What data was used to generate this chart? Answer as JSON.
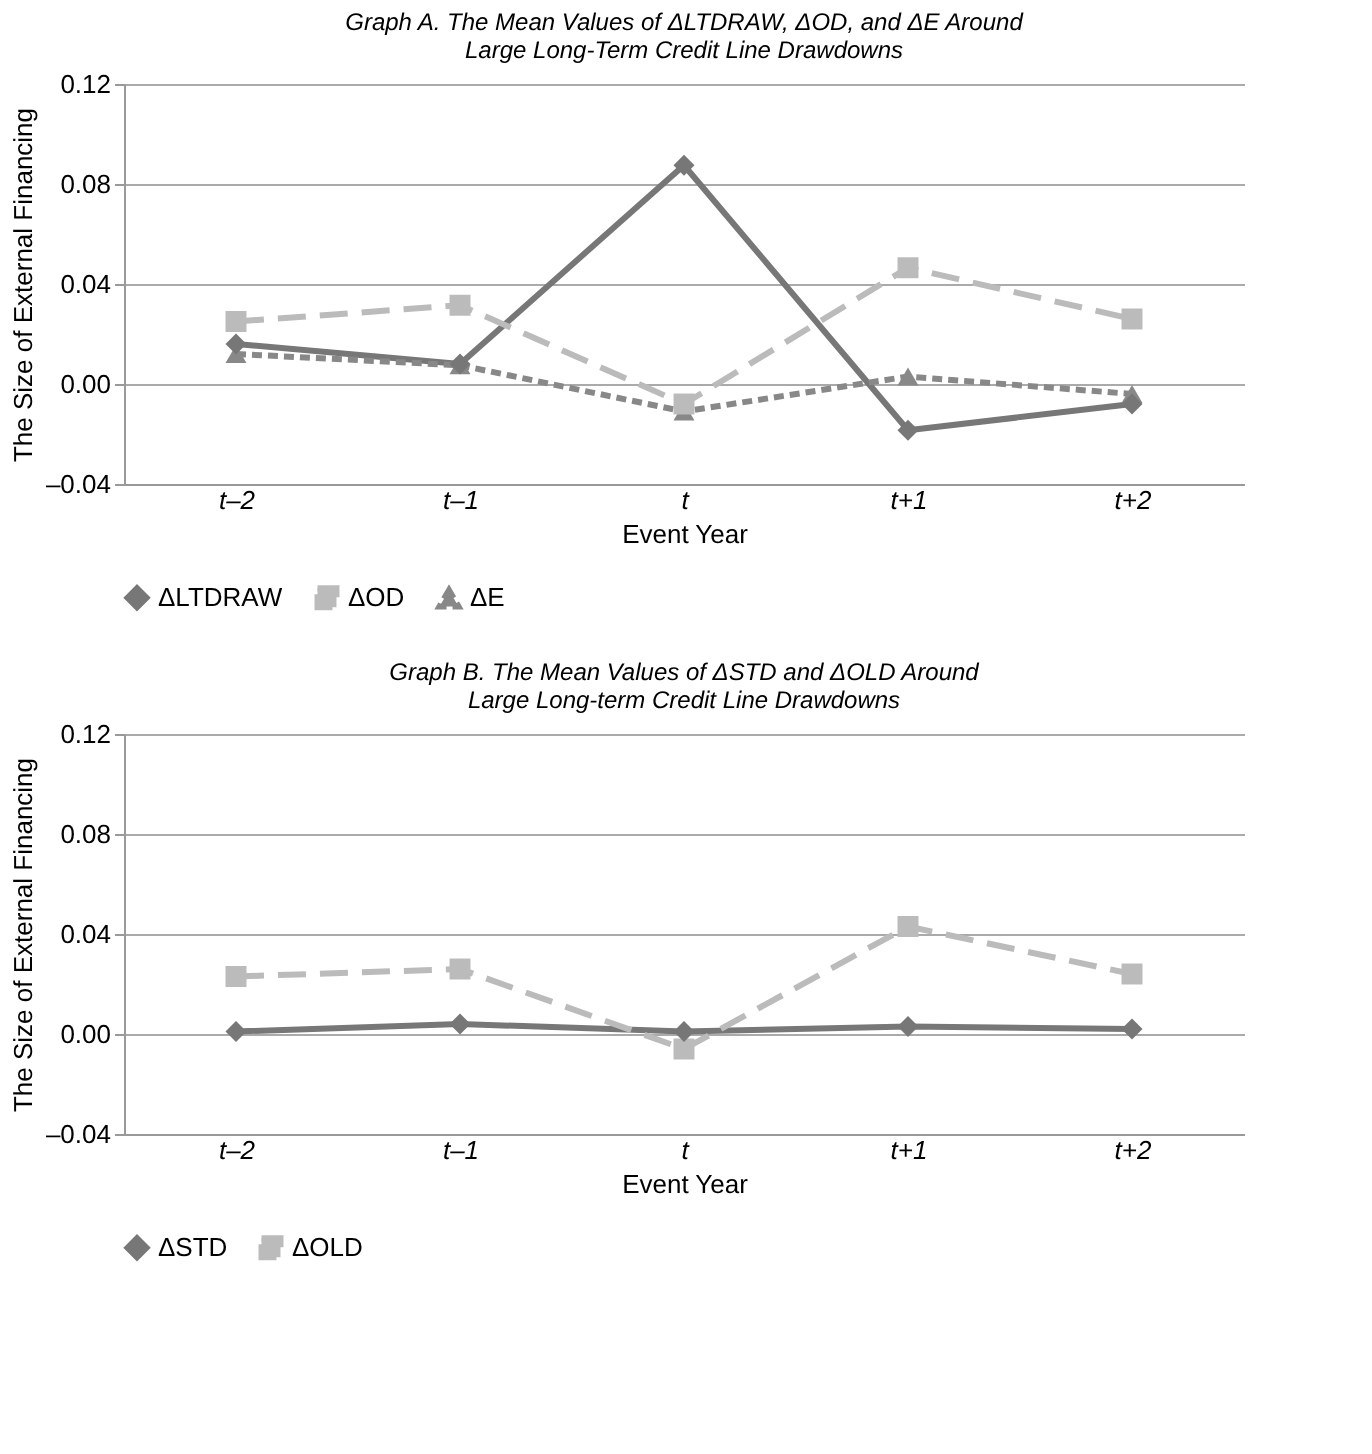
{
  "chart_data": [
    {
      "type": "line",
      "title": "Graph A. The Mean Values of ΔLTDRAW, ΔOD, and ΔE Around\nLarge Long-Term Credit Line Drawdowns",
      "xlabel": "Event Year",
      "ylabel": "The Size of External Financing",
      "categories": [
        "t–2",
        "t–1",
        "t",
        "t+1",
        "t+2"
      ],
      "series": [
        {
          "name": "ΔLTDRAW",
          "color": "#777777",
          "marker": "diamond",
          "line_style": "solid",
          "values": [
            0.016,
            0.008,
            0.0875,
            -0.0185,
            -0.008
          ]
        },
        {
          "name": "ΔOD",
          "color": "#bbbbbb",
          "marker": "square",
          "line_style": "dashed",
          "values": [
            0.025,
            0.0315,
            -0.008,
            0.0465,
            0.026
          ]
        },
        {
          "name": "ΔE",
          "color": "#888888",
          "marker": "triangle",
          "line_style": "dotted",
          "values": [
            0.012,
            0.0075,
            -0.011,
            0.003,
            -0.004
          ]
        }
      ],
      "ylim": [
        -0.04,
        0.12
      ],
      "yticks": [
        {
          "value": -0.04,
          "label": "–0.04"
        },
        {
          "value": 0,
          "label": "0.00"
        },
        {
          "value": 0.04,
          "label": "0.04"
        },
        {
          "value": 0.08,
          "label": "0.08"
        },
        {
          "value": 0.12,
          "label": "0.12"
        }
      ],
      "grid": "y",
      "legend": "bottom"
    },
    {
      "type": "line",
      "title": "Graph B. The Mean Values of ΔSTD and ΔOLD Around\nLarge Long-term Credit Line Drawdowns",
      "xlabel": "Event Year",
      "ylabel": "The Size of External Financing",
      "categories": [
        "t–2",
        "t–1",
        "t",
        "t+1",
        "t+2"
      ],
      "series": [
        {
          "name": "ΔSTD",
          "color": "#777777",
          "marker": "diamond",
          "line_style": "solid",
          "values": [
            0.001,
            0.004,
            0.001,
            0.003,
            0.002
          ]
        },
        {
          "name": "ΔOLD",
          "color": "#bbbbbb",
          "marker": "square",
          "line_style": "dashed",
          "values": [
            0.023,
            0.026,
            -0.006,
            0.043,
            0.024
          ]
        }
      ],
      "ylim": [
        -0.04,
        0.12
      ],
      "yticks": [
        {
          "value": -0.04,
          "label": "–0.04"
        },
        {
          "value": 0,
          "label": "0.00"
        },
        {
          "value": 0.04,
          "label": "0.04"
        },
        {
          "value": 0.08,
          "label": "0.08"
        },
        {
          "value": 0.12,
          "label": "0.12"
        }
      ],
      "grid": "y",
      "legend": "bottom"
    }
  ]
}
